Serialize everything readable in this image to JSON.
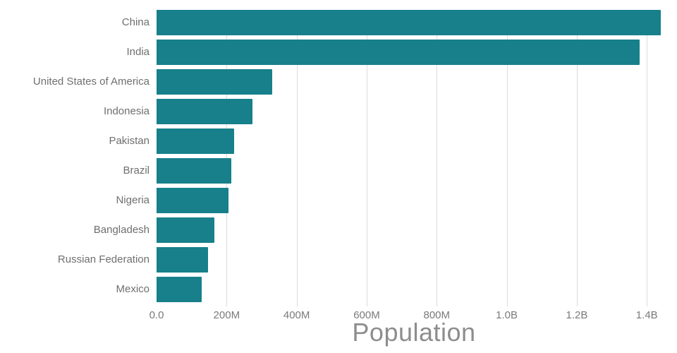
{
  "chart_data": {
    "type": "bar",
    "orientation": "horizontal",
    "title": "",
    "xlabel": "Population",
    "ylabel": "",
    "categories": [
      "China",
      "India",
      "United States of America",
      "Indonesia",
      "Pakistan",
      "Brazil",
      "Nigeria",
      "Bangladesh",
      "Russian Federation",
      "Mexico"
    ],
    "values": [
      1440000000,
      1380000000,
      331000000,
      274000000,
      221000000,
      213000000,
      206000000,
      165000000,
      146000000,
      129000000
    ],
    "xlim": [
      0,
      1470000000
    ],
    "xticks": [
      {
        "value": 0,
        "label": "0.0"
      },
      {
        "value": 200000000,
        "label": "200M"
      },
      {
        "value": 400000000,
        "label": "400M"
      },
      {
        "value": 600000000,
        "label": "600M"
      },
      {
        "value": 800000000,
        "label": "800M"
      },
      {
        "value": 1000000000,
        "label": "1.0B"
      },
      {
        "value": 1200000000,
        "label": "1.2B"
      },
      {
        "value": 1400000000,
        "label": "1.4B"
      }
    ],
    "grid": true,
    "legend": "none",
    "bar_color": "#17808a",
    "gridline_color": "#dcdcdc",
    "category_label_color": "#6f6f6f",
    "tick_label_color": "#7a7a7a",
    "xlabel_color": "#8d8d8d"
  }
}
